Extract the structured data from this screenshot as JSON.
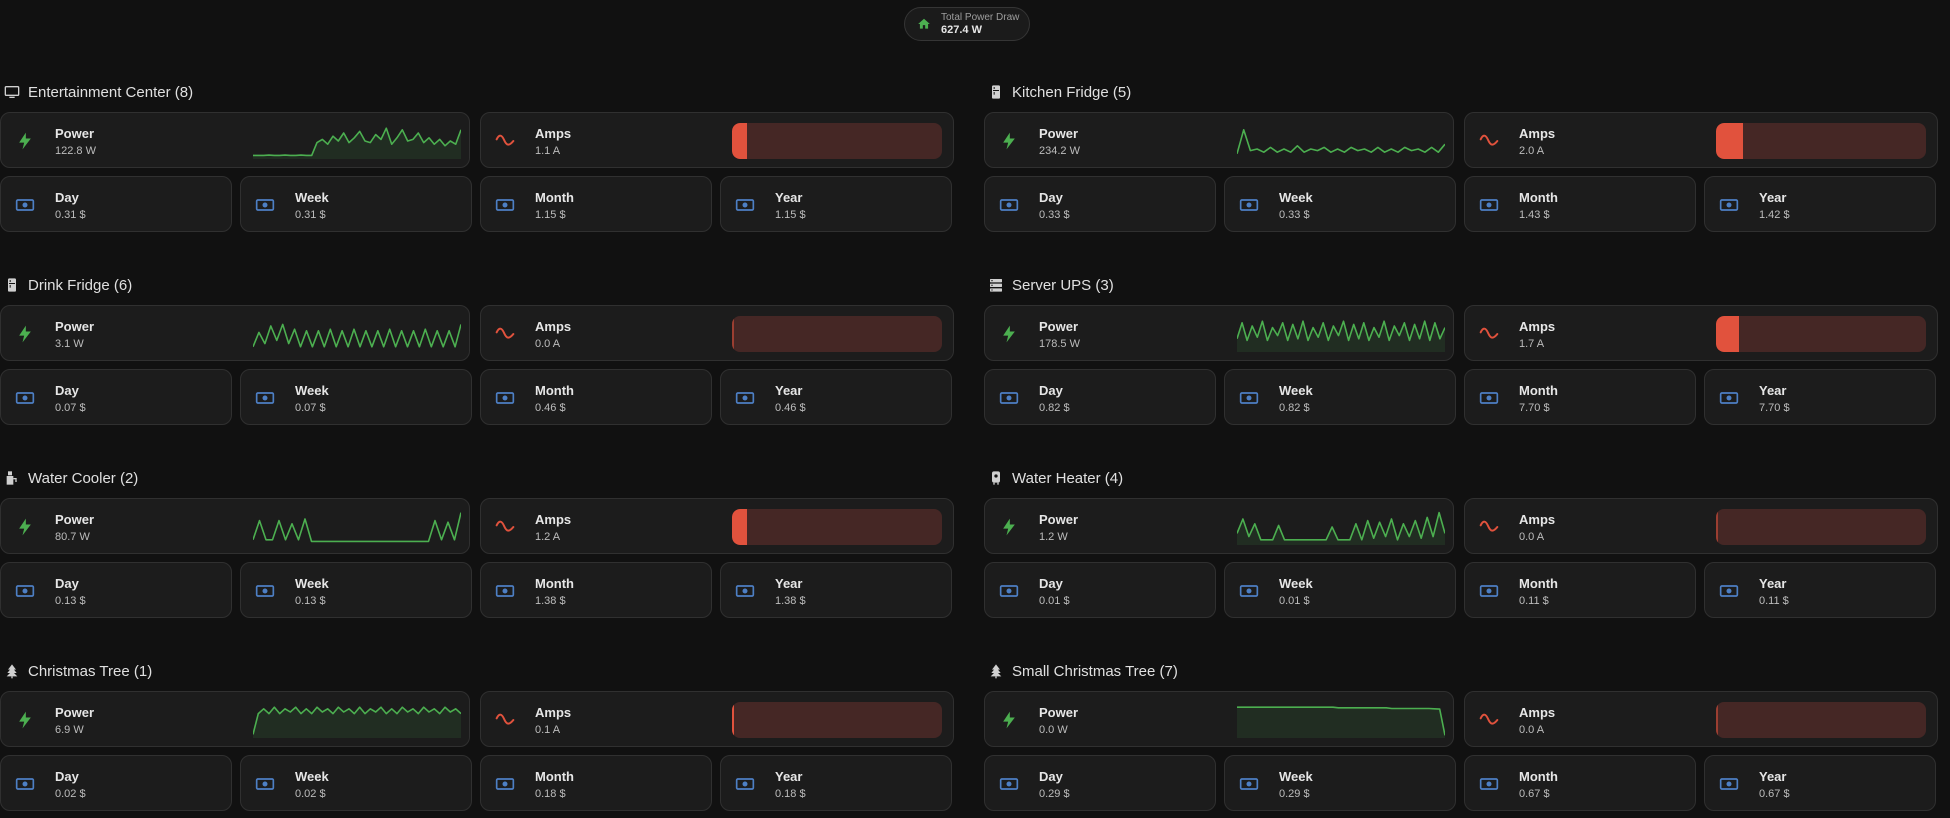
{
  "header": {
    "total_label": "Total Power Draw",
    "total_value": "627.4 W",
    "icon": "home-icon",
    "icon_color": "#4caf50"
  },
  "colors": {
    "power": "#4caf50",
    "amps_bar": "#e1523d",
    "amps_track": "#452725",
    "cost_icon": "#4d7fc4"
  },
  "sections": [
    {
      "title": "Entertainment Center (8)",
      "icon": "television-icon",
      "power": {
        "label": "Power",
        "value": "122.8 W"
      },
      "amps": {
        "label": "Amps",
        "value": "1.1 A",
        "level": 0.07
      },
      "trend": [
        0.05,
        0.05,
        0.05,
        0.06,
        0.05,
        0.05,
        0.06,
        0.05,
        0.05,
        0.06,
        0.05,
        0.05,
        0.45,
        0.55,
        0.4,
        0.65,
        0.5,
        0.75,
        0.45,
        0.6,
        0.8,
        0.5,
        0.45,
        0.7,
        0.55,
        0.9,
        0.4,
        0.6,
        0.85,
        0.5,
        0.55,
        0.75,
        0.45,
        0.6,
        0.4,
        0.55,
        0.35,
        0.5,
        0.4,
        0.85
      ],
      "fill_area": true,
      "costs": [
        {
          "label": "Day",
          "value": "0.31 $"
        },
        {
          "label": "Week",
          "value": "0.31 $"
        },
        {
          "label": "Month",
          "value": "1.15 $"
        },
        {
          "label": "Year",
          "value": "1.15 $"
        }
      ]
    },
    {
      "title": "Drink Fridge (6)",
      "icon": "fridge-icon",
      "power": {
        "label": "Power",
        "value": "3.1 W"
      },
      "amps": {
        "label": "Amps",
        "value": "0.0 A",
        "level": 0.0
      },
      "trend": [
        0.1,
        0.55,
        0.2,
        0.75,
        0.3,
        0.8,
        0.2,
        0.65,
        0.1,
        0.6,
        0.1,
        0.6,
        0.1,
        0.65,
        0.1,
        0.6,
        0.1,
        0.65,
        0.1,
        0.6,
        0.1,
        0.6,
        0.1,
        0.65,
        0.1,
        0.6,
        0.1,
        0.6,
        0.1,
        0.65,
        0.1,
        0.6,
        0.1,
        0.6,
        0.1,
        0.8
      ],
      "fill_area": false,
      "costs": [
        {
          "label": "Day",
          "value": "0.07 $"
        },
        {
          "label": "Week",
          "value": "0.07 $"
        },
        {
          "label": "Month",
          "value": "0.46 $"
        },
        {
          "label": "Year",
          "value": "0.46 $"
        }
      ]
    },
    {
      "title": "Water Cooler (2)",
      "icon": "water-dispenser-icon",
      "power": {
        "label": "Power",
        "value": "80.7 W"
      },
      "amps": {
        "label": "Amps",
        "value": "1.2 A",
        "level": 0.07
      },
      "trend": [
        0.1,
        0.7,
        0.1,
        0.1,
        0.7,
        0.1,
        0.6,
        0.1,
        0.75,
        0.05,
        0.05,
        0.05,
        0.05,
        0.05,
        0.05,
        0.05,
        0.05,
        0.05,
        0.05,
        0.05,
        0.05,
        0.05,
        0.05,
        0.05,
        0.05,
        0.05,
        0.05,
        0.05,
        0.7,
        0.1,
        0.65,
        0.1,
        0.95
      ],
      "fill_area": false,
      "costs": [
        {
          "label": "Day",
          "value": "0.13 $"
        },
        {
          "label": "Week",
          "value": "0.13 $"
        },
        {
          "label": "Month",
          "value": "1.38 $"
        },
        {
          "label": "Year",
          "value": "1.38 $"
        }
      ]
    },
    {
      "title": "Christmas Tree (1)",
      "icon": "pine-tree-icon",
      "power": {
        "label": "Power",
        "value": "6.9 W"
      },
      "amps": {
        "label": "Amps",
        "value": "0.1 A",
        "level": 0.01
      },
      "trend": [
        0.05,
        0.7,
        0.85,
        0.7,
        0.9,
        0.7,
        0.85,
        0.75,
        0.9,
        0.7,
        0.85,
        0.7,
        0.9,
        0.75,
        0.85,
        0.7,
        0.9,
        0.75,
        0.85,
        0.7,
        0.9,
        0.7,
        0.85,
        0.75,
        0.9,
        0.7,
        0.85,
        0.7,
        0.9,
        0.75,
        0.85,
        0.7,
        0.9,
        0.75,
        0.85,
        0.7,
        0.9,
        0.75,
        0.85,
        0.7
      ],
      "fill_area": true,
      "costs": [
        {
          "label": "Day",
          "value": "0.02 $"
        },
        {
          "label": "Week",
          "value": "0.02 $"
        },
        {
          "label": "Month",
          "value": "0.18 $"
        },
        {
          "label": "Year",
          "value": "0.18 $"
        }
      ]
    },
    {
      "title": "Kitchen Fridge (5)",
      "icon": "fridge-icon",
      "power": {
        "label": "Power",
        "value": "234.2 W"
      },
      "amps": {
        "label": "Amps",
        "value": "2.0 A",
        "level": 0.13
      },
      "trend": [
        0.1,
        0.85,
        0.2,
        0.25,
        0.15,
        0.3,
        0.15,
        0.25,
        0.15,
        0.35,
        0.15,
        0.25,
        0.2,
        0.3,
        0.15,
        0.25,
        0.15,
        0.3,
        0.2,
        0.25,
        0.15,
        0.3,
        0.15,
        0.25,
        0.15,
        0.3,
        0.2,
        0.25,
        0.15,
        0.3,
        0.15,
        0.4
      ],
      "fill_area": false,
      "costs": [
        {
          "label": "Day",
          "value": "0.33 $"
        },
        {
          "label": "Week",
          "value": "0.33 $"
        },
        {
          "label": "Month",
          "value": "1.43 $"
        },
        {
          "label": "Year",
          "value": "1.42 $"
        }
      ]
    },
    {
      "title": "Server UPS (3)",
      "icon": "server-icon",
      "power": {
        "label": "Power",
        "value": "178.5 W"
      },
      "amps": {
        "label": "Amps",
        "value": "1.7 A",
        "level": 0.11
      },
      "trend": [
        0.35,
        0.85,
        0.3,
        0.75,
        0.4,
        0.9,
        0.3,
        0.7,
        0.45,
        0.85,
        0.3,
        0.8,
        0.35,
        0.9,
        0.3,
        0.7,
        0.4,
        0.85,
        0.3,
        0.75,
        0.45,
        0.9,
        0.3,
        0.8,
        0.35,
        0.85,
        0.3,
        0.7,
        0.4,
        0.9,
        0.3,
        0.75,
        0.45,
        0.85,
        0.3,
        0.8,
        0.35,
        0.9,
        0.3,
        0.85,
        0.35,
        0.7
      ],
      "fill_area": true,
      "costs": [
        {
          "label": "Day",
          "value": "0.82 $"
        },
        {
          "label": "Week",
          "value": "0.82 $"
        },
        {
          "label": "Month",
          "value": "7.70 $"
        },
        {
          "label": "Year",
          "value": "7.70 $"
        }
      ]
    },
    {
      "title": "Water Heater (4)",
      "icon": "water-boiler-icon",
      "power": {
        "label": "Power",
        "value": "1.2 W"
      },
      "amps": {
        "label": "Amps",
        "value": "0.0 A",
        "level": 0.0
      },
      "trend": [
        0.3,
        0.75,
        0.2,
        0.6,
        0.1,
        0.1,
        0.1,
        0.55,
        0.1,
        0.1,
        0.1,
        0.1,
        0.1,
        0.1,
        0.1,
        0.1,
        0.5,
        0.1,
        0.1,
        0.1,
        0.6,
        0.1,
        0.7,
        0.15,
        0.65,
        0.2,
        0.75,
        0.1,
        0.6,
        0.2,
        0.7,
        0.15,
        0.8,
        0.2,
        0.95,
        0.3
      ],
      "fill_area": true,
      "costs": [
        {
          "label": "Day",
          "value": "0.01 $"
        },
        {
          "label": "Week",
          "value": "0.01 $"
        },
        {
          "label": "Month",
          "value": "0.11 $"
        },
        {
          "label": "Year",
          "value": "0.11 $"
        }
      ]
    },
    {
      "title": "Small Christmas Tree (7)",
      "icon": "pine-tree-icon",
      "power": {
        "label": "Power",
        "value": "0.0 W"
      },
      "amps": {
        "label": "Amps",
        "value": "0.0 A",
        "level": 0.0
      },
      "trend": [
        0.9,
        0.9,
        0.9,
        0.9,
        0.9,
        0.9,
        0.9,
        0.9,
        0.9,
        0.9,
        0.9,
        0.9,
        0.9,
        0.9,
        0.9,
        0.9,
        0.9,
        0.9,
        0.9,
        0.88,
        0.88,
        0.88,
        0.88,
        0.88,
        0.88,
        0.88,
        0.88,
        0.88,
        0.88,
        0.86,
        0.86,
        0.86,
        0.86,
        0.86,
        0.86,
        0.86,
        0.86,
        0.85,
        0.84,
        0.02
      ],
      "fill_area": true,
      "costs": [
        {
          "label": "Day",
          "value": "0.29 $"
        },
        {
          "label": "Week",
          "value": "0.29 $"
        },
        {
          "label": "Month",
          "value": "0.67 $"
        },
        {
          "label": "Year",
          "value": "0.67 $"
        }
      ]
    }
  ]
}
